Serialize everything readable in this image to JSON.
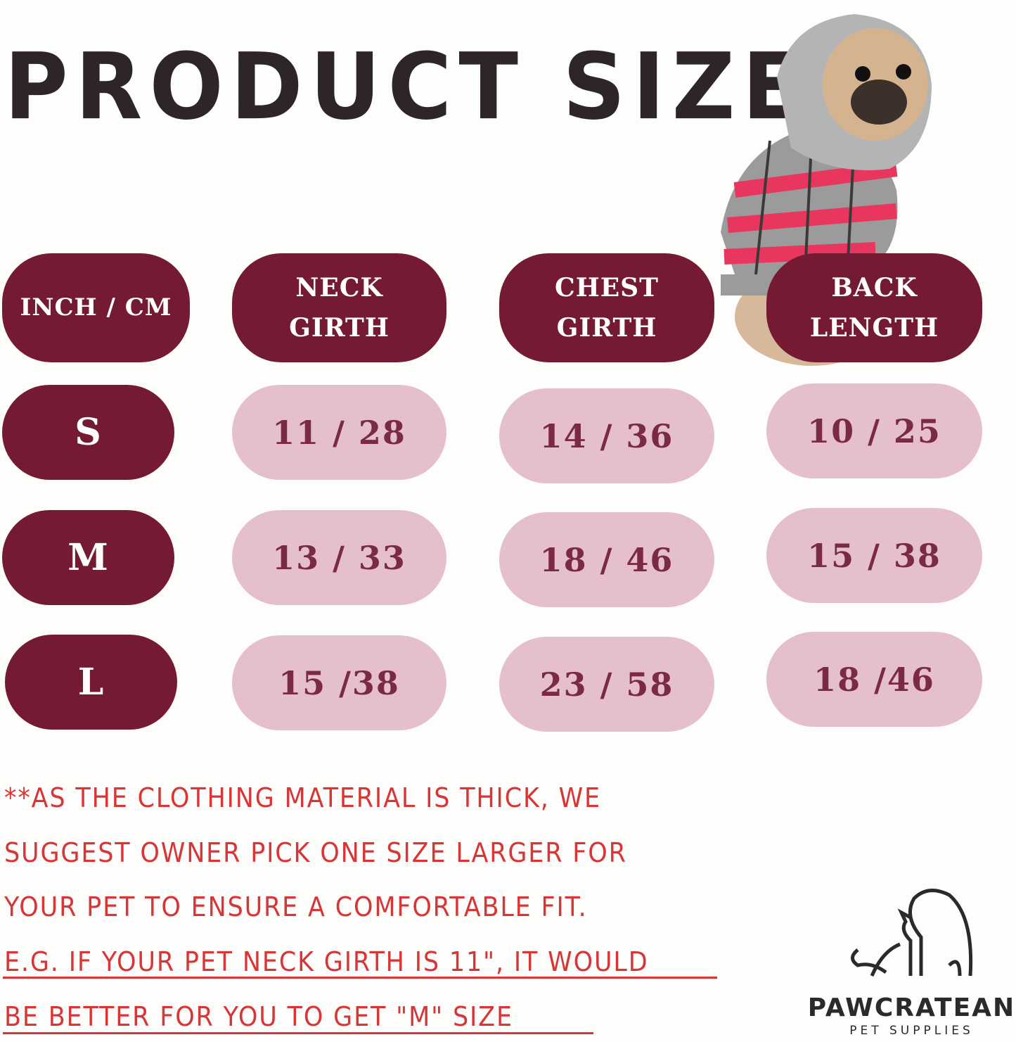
{
  "title": "PRODUCT SIZE",
  "table": {
    "headers": [
      "INCH / CM",
      "NECK GIRTH",
      "CHEST GIRTH",
      "BACK LENGTH"
    ],
    "headers_lines": [
      [
        "INCH / CM"
      ],
      [
        "NECK",
        "GIRTH"
      ],
      [
        "CHEST",
        "GIRTH"
      ],
      [
        "BACK",
        "LENGTH"
      ]
    ],
    "rows": [
      {
        "size": "S",
        "neck": "11  /  28",
        "chest": "14  /  36",
        "back": "10  /  25"
      },
      {
        "size": "M",
        "neck": "13  /  33",
        "chest": "18  /  46",
        "back": "15  /  38"
      },
      {
        "size": "L",
        "neck": "15  /38",
        "chest": "23  /  58",
        "back": "18  /46"
      }
    ]
  },
  "notes": [
    "**AS THE CLOTHING MATERIAL IS THICK, WE",
    "SUGGEST OWNER PICK ONE SIZE LARGER FOR",
    "YOUR PET TO ENSURE A COMFORTABLE FIT.",
    "E.G. IF YOUR PET NECK GIRTH IS 11\", IT WOULD",
    "BE BETTER FOR YOU TO GET  \"M\"  SIZE"
  ],
  "brand": {
    "name": "PAWCRATEAN",
    "tagline": "PET SUPPLIES"
  },
  "colors": {
    "header_pill": "#741a32",
    "value_pill": "#e5c0cb",
    "value_text": "#7a2a45",
    "note_text": "#d83636",
    "title": "#2e2528"
  },
  "icons": {
    "product_photo": "pug-in-plaid-hoodie",
    "logo": "dog-and-cat-outline-logo"
  }
}
